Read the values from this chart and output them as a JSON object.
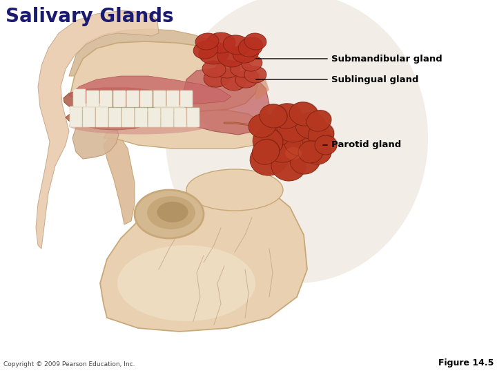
{
  "title": "Salivary Glands",
  "title_color": "#1a1a6e",
  "title_fontsize": 20,
  "title_fontweight": "bold",
  "background_color": "#ffffff",
  "copyright_text": "Copyright © 2009 Pearson Education, Inc.",
  "copyright_fontsize": 6.5,
  "figure_label": "Figure 14.5",
  "figure_label_fontsize": 9,
  "skull_color": "#e8d0b0",
  "skull_edge": "#c8a878",
  "skin_color": "#e8c8a8",
  "gland_red": "#b83820",
  "gland_dark": "#7a2010",
  "tissue_pink": "#d88888",
  "tissue_red": "#c05050",
  "label_parotid": "Parotid gland",
  "label_sublingual": "Sublingual gland",
  "label_submandibular": "Submandibular gland",
  "label_fontsize": 9.5,
  "label_fontweight": "bold"
}
